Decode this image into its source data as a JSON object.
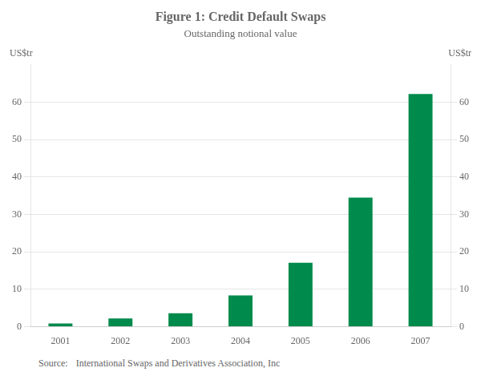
{
  "chart_data": {
    "type": "bar",
    "title": "Figure 1: Credit Default Swaps",
    "subtitle": "Outstanding notional value",
    "categories": [
      "2001",
      "2002",
      "2003",
      "2004",
      "2005",
      "2006",
      "2007"
    ],
    "values": [
      0.9,
      2.2,
      3.6,
      8.4,
      17.1,
      34.5,
      62.2
    ],
    "color": "#008A4B",
    "ylim": [
      0,
      70
    ],
    "yticks": [
      0,
      10,
      20,
      30,
      40,
      50,
      60
    ],
    "y2lim": [
      0,
      70
    ],
    "y2ticks": [
      0,
      10,
      20,
      30,
      40,
      50,
      60
    ],
    "ylabel": "US$tr",
    "y2label": "US$tr",
    "annotations": [
      "Source:",
      "International Swaps and Derivatives Association, Inc"
    ],
    "grid": true,
    "legend": "none"
  }
}
